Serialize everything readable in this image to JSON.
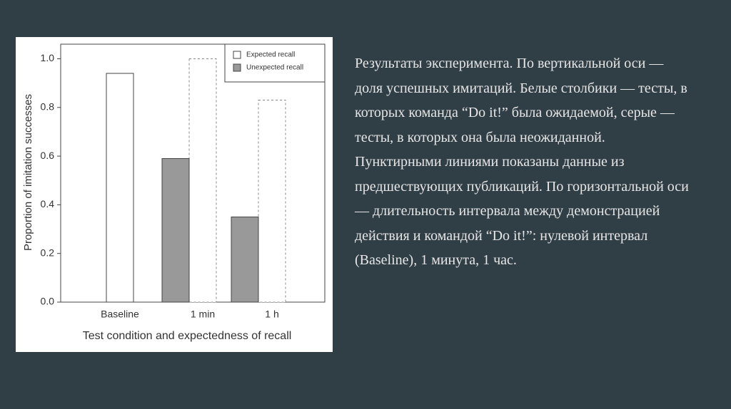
{
  "chart_data": {
    "type": "bar",
    "categories": [
      "Baseline",
      "1 min",
      "1 h"
    ],
    "series": [
      {
        "name": "Expected recall",
        "color": "#ffffff",
        "values": [
          0.94,
          1.0,
          0.83
        ],
        "dashed": [
          false,
          true,
          true
        ]
      },
      {
        "name": "Unexpected recall",
        "color": "#999999",
        "values": [
          null,
          0.59,
          0.35
        ]
      }
    ],
    "ylabel": "Proportion of imitation successes",
    "xlabel": "Test condition and expectedness of recall",
    "ylim": [
      0,
      1.06
    ],
    "yticks": [
      {
        "value": 0,
        "label": "0.0"
      },
      0.2,
      0.4,
      0.6,
      0.8,
      {
        "value": 1,
        "label": "1.0"
      }
    ],
    "legend": "upper right"
  },
  "caption": "Результаты эксперимента. По вертикальной оси — доля успешных имитаций. Белые столбики — тесты, в которых команда “Do it!” была ожидаемой, серые — тесты, в которых она была неожиданной. Пунктирными линиями показаны данные из предшествующих публикаций. По горизонтальной оси — длительность интервала между демонстрацией действия и командой “Do it!”: нулевой интервал (Baseline), 1 минута, 1 час."
}
